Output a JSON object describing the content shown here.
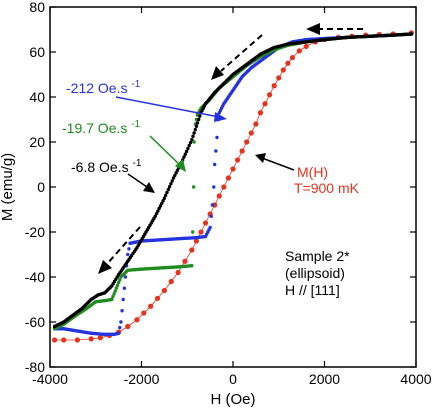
{
  "chart_data": {
    "type": "scatter",
    "title": "",
    "xlabel": "H (Oe)",
    "ylabel": "M (emu/g)",
    "xlim": [
      -4000,
      4000
    ],
    "ylim": [
      -80,
      80
    ],
    "x_ticks": [
      -4000,
      -2000,
      0,
      2000,
      4000
    ],
    "y_ticks": [
      -80,
      -60,
      -40,
      -20,
      0,
      20,
      40,
      60,
      80
    ],
    "x_tick_labels": [
      "-4000",
      "-2000",
      "0",
      "2000",
      "4000"
    ],
    "y_tick_labels": [
      "-80",
      "-60",
      "-40",
      "-20",
      "0",
      "20",
      "40",
      "60",
      "80"
    ],
    "grid": false,
    "series": [
      {
        "name": "M(H) T=900 mK",
        "color": "#e8321e",
        "style": "dots-line",
        "points": [
          [
            -3900,
            -68
          ],
          [
            -3700,
            -68
          ],
          [
            -3400,
            -68
          ],
          [
            -3100,
            -67.5
          ],
          [
            -2900,
            -67
          ],
          [
            -2700,
            -66
          ],
          [
            -2500,
            -64.5
          ],
          [
            -2300,
            -62
          ],
          [
            -2100,
            -59
          ],
          [
            -1950,
            -56
          ],
          [
            -1800,
            -53
          ],
          [
            -1650,
            -49.5
          ],
          [
            -1500,
            -46
          ],
          [
            -1350,
            -42
          ],
          [
            -1200,
            -38
          ],
          [
            -1050,
            -33
          ],
          [
            -900,
            -28
          ],
          [
            -800,
            -24
          ],
          [
            -700,
            -20
          ],
          [
            -600,
            -16
          ],
          [
            -500,
            -12
          ],
          [
            -400,
            -8
          ],
          [
            -300,
            -4
          ],
          [
            -200,
            0
          ],
          [
            -100,
            4
          ],
          [
            0,
            8
          ],
          [
            100,
            12
          ],
          [
            200,
            16
          ],
          [
            300,
            20
          ],
          [
            400,
            24
          ],
          [
            500,
            28
          ],
          [
            600,
            33
          ],
          [
            700,
            37
          ],
          [
            800,
            41
          ],
          [
            900,
            45
          ],
          [
            1000,
            48.5
          ],
          [
            1100,
            52
          ],
          [
            1200,
            55
          ],
          [
            1300,
            57.5
          ],
          [
            1450,
            60.5
          ],
          [
            1600,
            62.5
          ],
          [
            1800,
            64.5
          ],
          [
            2000,
            65.5
          ],
          [
            2300,
            66.5
          ],
          [
            2600,
            67
          ],
          [
            2900,
            67.5
          ],
          [
            3200,
            67.8
          ],
          [
            3500,
            68
          ],
          [
            3900,
            68.5
          ]
        ]
      },
      {
        "name": "-212 Oe.s-1",
        "color": "#2433e0",
        "style": "dots",
        "points": [
          [
            -3900,
            -63
          ],
          [
            -3700,
            -63
          ],
          [
            -3400,
            -64
          ],
          [
            -3100,
            -65
          ],
          [
            -2800,
            -65.5
          ],
          [
            -2600,
            -65.5
          ],
          [
            -2500,
            -65
          ],
          [
            -2450,
            -60
          ],
          [
            -2400,
            -50
          ],
          [
            -2350,
            -40
          ],
          [
            -2300,
            -30
          ],
          [
            -2250,
            -25
          ],
          [
            -2000,
            -24
          ],
          [
            -1600,
            -23.5
          ],
          [
            -1200,
            -23
          ],
          [
            -800,
            -22.5
          ],
          [
            -600,
            -22
          ],
          [
            -500,
            -18
          ],
          [
            -450,
            -8
          ],
          [
            -420,
            0
          ],
          [
            -400,
            10
          ],
          [
            -350,
            22
          ],
          [
            -320,
            30
          ],
          [
            -300,
            33
          ],
          [
            -200,
            37
          ],
          [
            -100,
            40
          ],
          [
            0,
            43
          ],
          [
            100,
            46
          ],
          [
            200,
            49
          ],
          [
            400,
            53
          ],
          [
            600,
            56
          ],
          [
            800,
            59
          ],
          [
            1000,
            62
          ],
          [
            1300,
            64.5
          ],
          [
            1600,
            65.5
          ],
          [
            2000,
            66
          ],
          [
            2500,
            66.5
          ],
          [
            3000,
            67
          ],
          [
            3500,
            67.5
          ],
          [
            3900,
            68
          ]
        ]
      },
      {
        "name": "-19.7 Oe.s-1",
        "color": "#1e8c1e",
        "style": "dots",
        "points": [
          [
            -3900,
            -63
          ],
          [
            -3700,
            -61
          ],
          [
            -3500,
            -58
          ],
          [
            -3200,
            -54
          ],
          [
            -3000,
            -51
          ],
          [
            -2800,
            -50.5
          ],
          [
            -2650,
            -50
          ],
          [
            -2550,
            -45
          ],
          [
            -2450,
            -40
          ],
          [
            -2300,
            -37
          ],
          [
            -2000,
            -36.5
          ],
          [
            -1600,
            -36
          ],
          [
            -1200,
            -35.5
          ],
          [
            -900,
            -35
          ],
          [
            -880,
            -20
          ],
          [
            -860,
            0
          ],
          [
            -850,
            20
          ],
          [
            -820,
            28
          ],
          [
            -780,
            32
          ],
          [
            -700,
            35
          ],
          [
            -500,
            39
          ],
          [
            -300,
            44
          ],
          [
            0,
            49
          ],
          [
            300,
            54
          ],
          [
            600,
            58
          ],
          [
            900,
            61
          ],
          [
            1200,
            63
          ],
          [
            1600,
            64.5
          ],
          [
            2000,
            65.5
          ],
          [
            2500,
            66.5
          ],
          [
            3000,
            67
          ],
          [
            3500,
            67.5
          ],
          [
            3900,
            68
          ]
        ]
      },
      {
        "name": "-6.8 Oe.s-1",
        "color": "#000000",
        "style": "dots",
        "points": [
          [
            -3900,
            -62
          ],
          [
            -3700,
            -60
          ],
          [
            -3500,
            -57
          ],
          [
            -3300,
            -54
          ],
          [
            -3100,
            -50
          ],
          [
            -2950,
            -48
          ],
          [
            -2800,
            -47
          ],
          [
            -2650,
            -44
          ],
          [
            -2500,
            -39
          ],
          [
            -2300,
            -33
          ],
          [
            -2100,
            -27
          ],
          [
            -1900,
            -20
          ],
          [
            -1700,
            -13
          ],
          [
            -1500,
            -5
          ],
          [
            -1300,
            4
          ],
          [
            -1100,
            12
          ],
          [
            -900,
            21
          ],
          [
            -800,
            27
          ],
          [
            -700,
            33
          ],
          [
            -600,
            37
          ],
          [
            -400,
            42
          ],
          [
            -200,
            46
          ],
          [
            0,
            50
          ],
          [
            200,
            53
          ],
          [
            400,
            56
          ],
          [
            600,
            59
          ],
          [
            900,
            62
          ],
          [
            1200,
            63.5
          ],
          [
            1600,
            64.5
          ],
          [
            2000,
            65.5
          ],
          [
            2500,
            66.5
          ],
          [
            3000,
            67
          ],
          [
            3500,
            67.5
          ],
          [
            3900,
            68
          ]
        ]
      }
    ],
    "annotations": [
      {
        "text": "-212 Oe.s",
        "sup": "-1",
        "color": "#2433e0"
      },
      {
        "text": "-19.7 Oe.s",
        "sup": "-1",
        "color": "#1e8c1e"
      },
      {
        "text": "-6.8 Oe.s",
        "sup": "-1",
        "color": "#000000"
      },
      {
        "text": "M(H)",
        "color": "#e8321e"
      },
      {
        "text": "T=900 mK",
        "color": "#e8321e"
      },
      {
        "text": "Sample 2*",
        "color": "#000000"
      },
      {
        "text": "(ellipsoid)",
        "color": "#000000"
      },
      {
        "text": "H // [111]",
        "color": "#000000"
      }
    ]
  }
}
